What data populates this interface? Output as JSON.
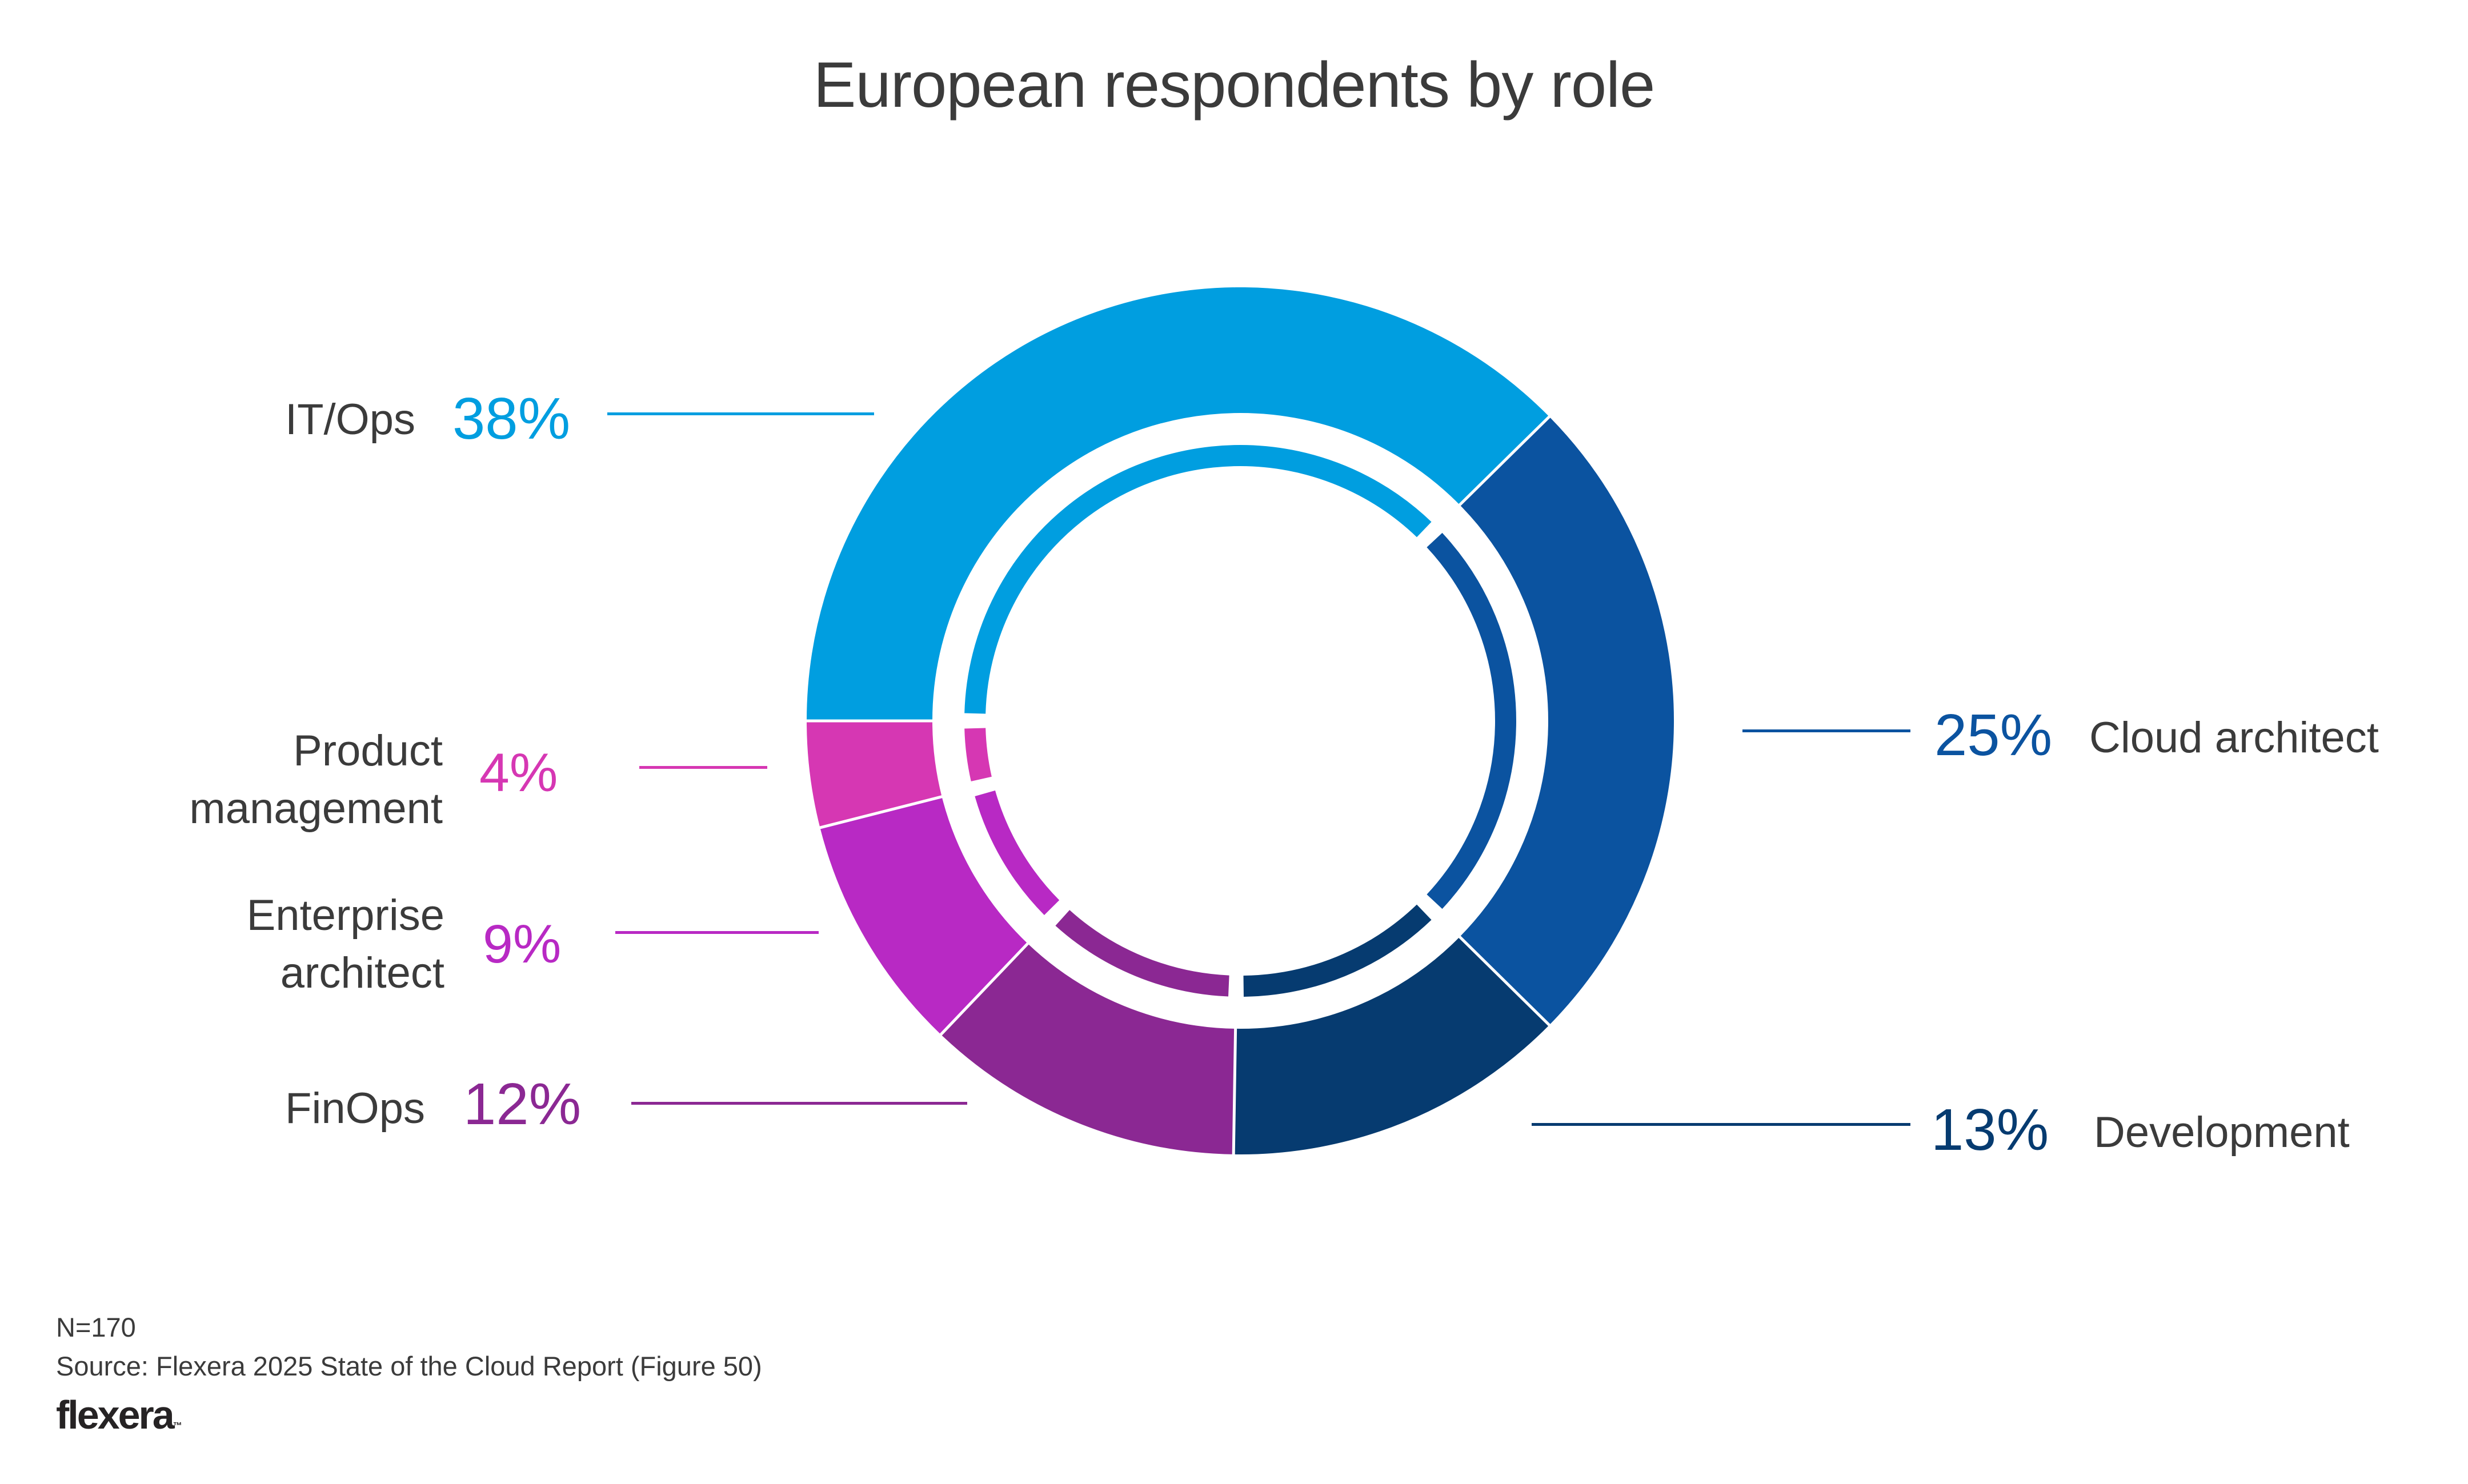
{
  "title": "European respondents by role",
  "chart_data": {
    "type": "pie",
    "variant": "donut-with-inner-ring",
    "start_angle_deg": 270,
    "direction": "clockwise",
    "segments": [
      {
        "label": "IT/Ops",
        "value": 38,
        "pct": "38%",
        "color": "#009EE0"
      },
      {
        "label": "Cloud architect",
        "value": 25,
        "pct": "25%",
        "color": "#0B53A0"
      },
      {
        "label": "Development",
        "value": 13,
        "pct": "13%",
        "color": "#063B70"
      },
      {
        "label": "FinOps",
        "value": 12,
        "pct": "12%",
        "color": "#8B2893"
      },
      {
        "label": "Enterprise architect",
        "value": 9,
        "pct": "9%",
        "color": "#B829C4"
      },
      {
        "label": "Product management",
        "value": 4,
        "pct": "4%",
        "color": "#D637B3"
      }
    ],
    "legend_position": "callouts-left-right",
    "grid": false
  },
  "footer": {
    "n_label": "N=170",
    "source": "Source: Flexera 2025 State of the Cloud Report (Figure 50)",
    "logo_text": "flexera",
    "logo_mark": "™"
  }
}
